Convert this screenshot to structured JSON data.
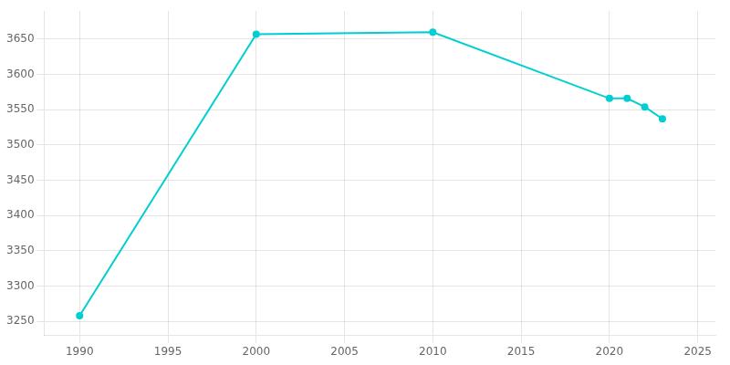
{
  "chart_data": {
    "type": "line",
    "x": [
      1990,
      2000,
      2010,
      2020,
      2021,
      2022,
      2023
    ],
    "values": [
      3258,
      3657,
      3660,
      3566,
      3566,
      3554,
      3537
    ],
    "color": "#00CED1",
    "marker": "circle",
    "xlim": [
      1988,
      2026
    ],
    "ylim": [
      3230,
      3690
    ],
    "xticks": [
      1990,
      1995,
      2000,
      2005,
      2010,
      2015,
      2020,
      2025
    ],
    "yticks": [
      3250,
      3300,
      3350,
      3400,
      3450,
      3500,
      3550,
      3600,
      3650
    ],
    "grid": true
  }
}
